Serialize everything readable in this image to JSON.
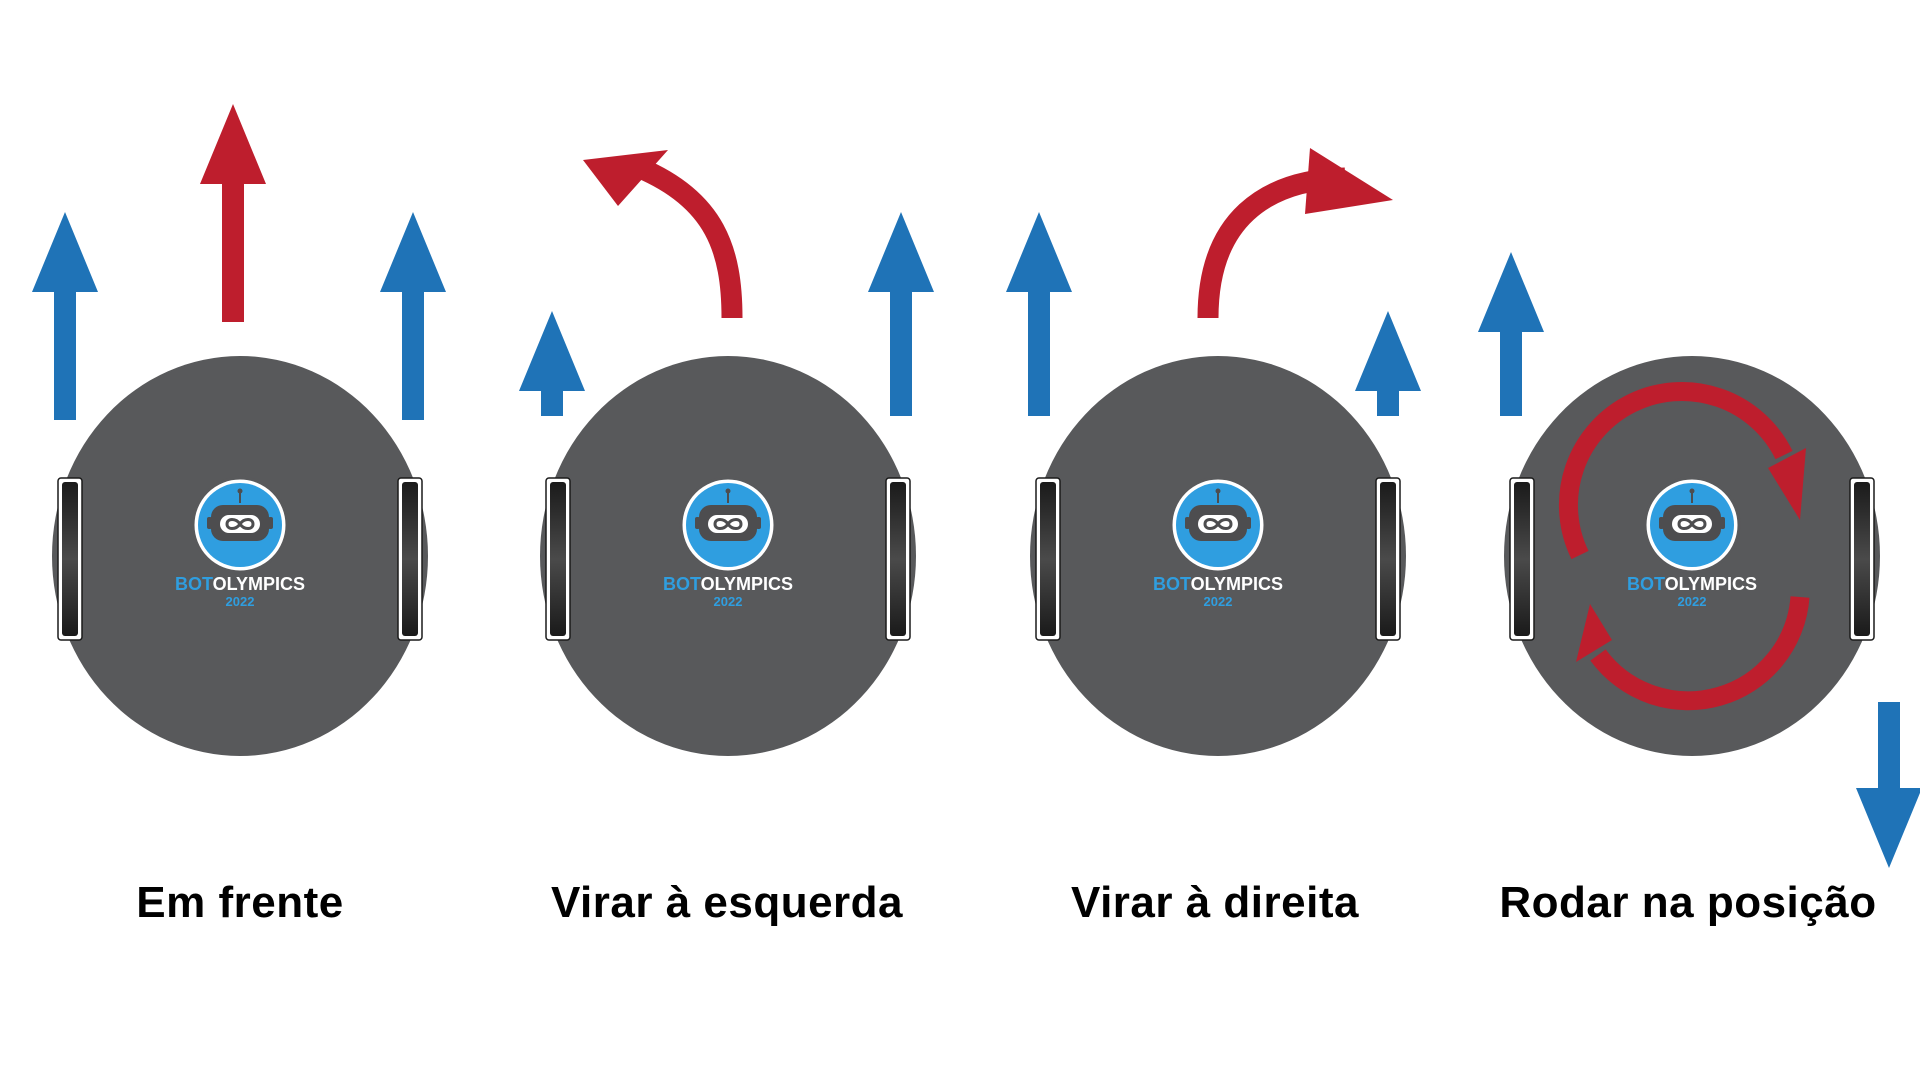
{
  "colors": {
    "body": "#58595b",
    "wheel": "#1a1a1a",
    "wheel_highlight": "#4a4a4a",
    "blue_arrow": "#1f73b7",
    "red_arrow": "#be1e2d",
    "logo_blue": "#2f9ee0",
    "logo_face": "#4d4d4f",
    "logo_text_white": "#ffffff"
  },
  "logo": {
    "word_bot": "BOT",
    "word_olympics": "OLYMPICS",
    "year": "2022"
  },
  "panels": [
    {
      "caption": "Em frente",
      "motion": "forward"
    },
    {
      "caption": "Virar à esquerda",
      "motion": "turn-left"
    },
    {
      "caption": "Virar à direita",
      "motion": "turn-right"
    },
    {
      "caption": "Rodar na posição",
      "motion": "rotate-in-place"
    }
  ]
}
